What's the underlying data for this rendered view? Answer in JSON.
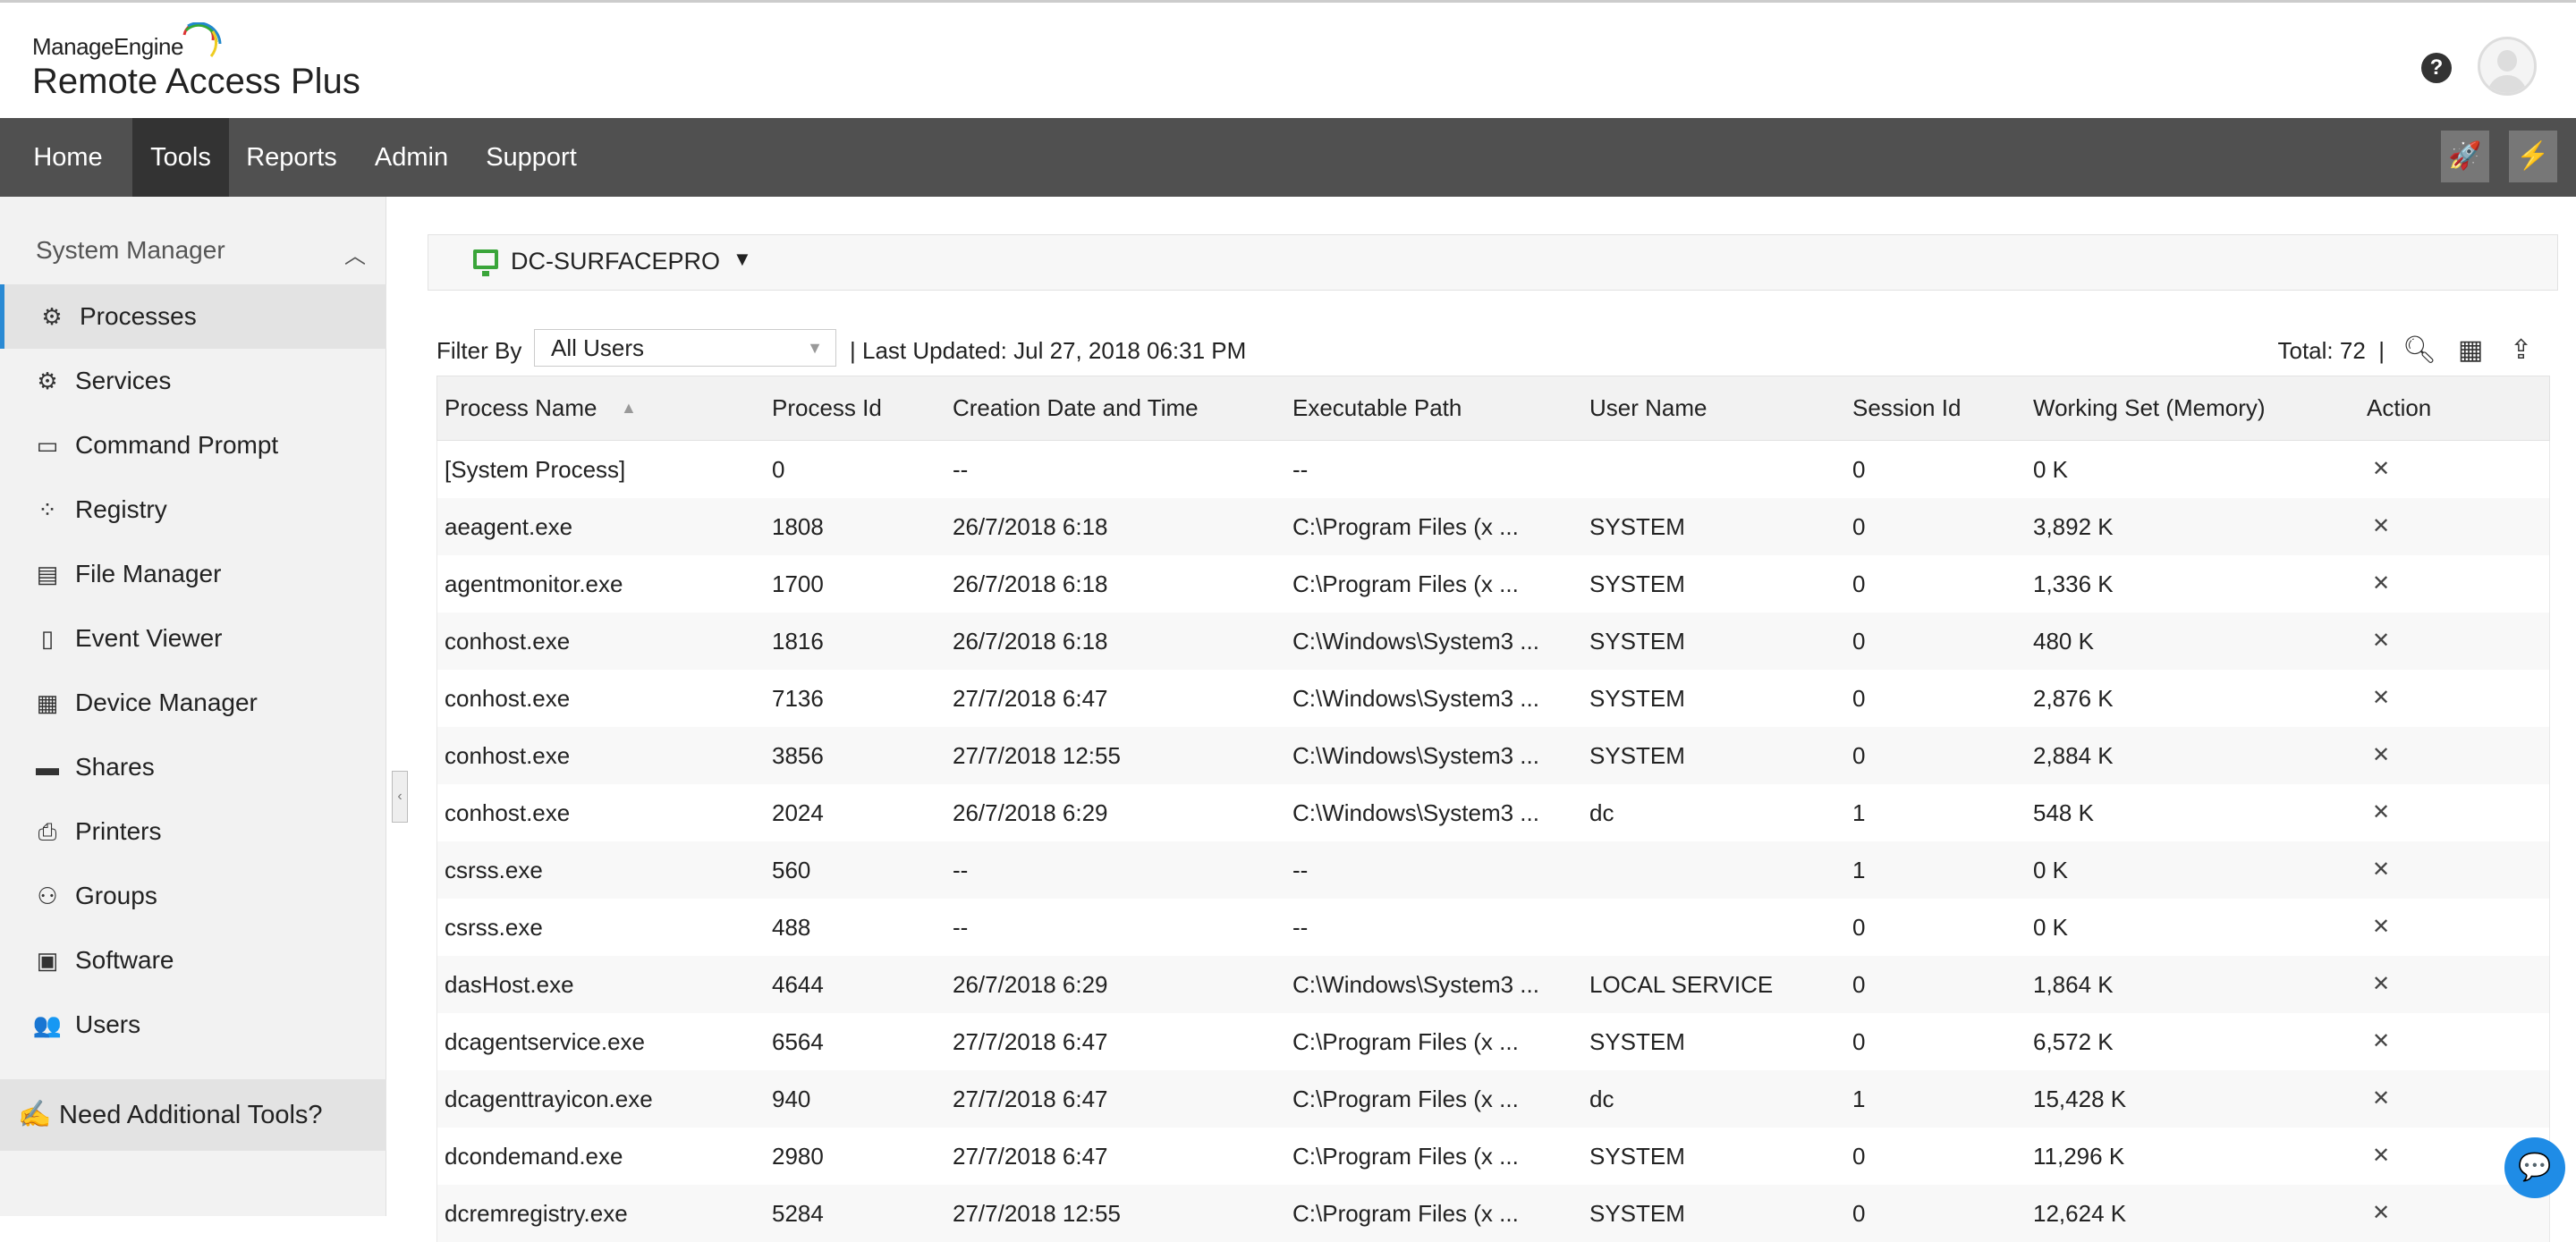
{
  "header": {
    "brand": "ManageEngine",
    "product": "Remote Access Plus",
    "help_icon": "help-icon",
    "avatar_icon": "user-avatar-icon"
  },
  "nav": {
    "items": [
      "Home",
      "Tools",
      "Reports",
      "Admin",
      "Support"
    ],
    "active": "Tools",
    "right_icons": [
      "rocket-icon",
      "lightning-icon"
    ]
  },
  "sidebar": {
    "section": "System Manager",
    "items": [
      {
        "label": "Processes",
        "icon": "gear-icon",
        "active": true
      },
      {
        "label": "Services",
        "icon": "services-icon"
      },
      {
        "label": "Command Prompt",
        "icon": "terminal-icon"
      },
      {
        "label": "Registry",
        "icon": "registry-icon"
      },
      {
        "label": "File Manager",
        "icon": "file-manager-icon"
      },
      {
        "label": "Event Viewer",
        "icon": "event-viewer-icon"
      },
      {
        "label": "Device Manager",
        "icon": "device-manager-icon"
      },
      {
        "label": "Shares",
        "icon": "shares-icon"
      },
      {
        "label": "Printers",
        "icon": "printer-icon"
      },
      {
        "label": "Groups",
        "icon": "groups-icon"
      },
      {
        "label": "Software",
        "icon": "software-icon"
      },
      {
        "label": "Users",
        "icon": "users-icon"
      }
    ],
    "need_tools": "Need Additional Tools?"
  },
  "device": {
    "name": "DC-SURFACEPRO",
    "color": "#3aa53a"
  },
  "toolbar": {
    "filter_label": "Filter By",
    "filter_value": "All Users",
    "last_updated_label": "Last Updated:",
    "last_updated": "Jul 27, 2018 06:31 PM",
    "total": "Total: 72"
  },
  "table": {
    "columns": [
      "Process Name",
      "Process Id",
      "Creation Date and Time",
      "Executable Path",
      "User Name",
      "Session Id",
      "Working Set (Memory)",
      "Action"
    ],
    "rows": [
      [
        "[System Process]",
        "0",
        "--",
        "--",
        "",
        "0",
        "0 K"
      ],
      [
        "aeagent.exe",
        "1808",
        "26/7/2018 6:18",
        "C:\\Program Files (x ...",
        "SYSTEM",
        "0",
        "3,892 K"
      ],
      [
        "agentmonitor.exe",
        "1700",
        "26/7/2018 6:18",
        "C:\\Program Files (x ...",
        "SYSTEM",
        "0",
        "1,336 K"
      ],
      [
        "conhost.exe",
        "1816",
        "26/7/2018 6:18",
        "C:\\Windows\\System3 ...",
        "SYSTEM",
        "0",
        "480 K"
      ],
      [
        "conhost.exe",
        "7136",
        "27/7/2018 6:47",
        "C:\\Windows\\System3 ...",
        "SYSTEM",
        "0",
        "2,876 K"
      ],
      [
        "conhost.exe",
        "3856",
        "27/7/2018 12:55",
        "C:\\Windows\\System3 ...",
        "SYSTEM",
        "0",
        "2,884 K"
      ],
      [
        "conhost.exe",
        "2024",
        "26/7/2018 6:29",
        "C:\\Windows\\System3 ...",
        "dc",
        "1",
        "548 K"
      ],
      [
        "csrss.exe",
        "560",
        "--",
        "--",
        "",
        "1",
        "0 K"
      ],
      [
        "csrss.exe",
        "488",
        "--",
        "--",
        "",
        "0",
        "0 K"
      ],
      [
        "dasHost.exe",
        "4644",
        "26/7/2018 6:29",
        "C:\\Windows\\System3 ...",
        "LOCAL SERVICE",
        "0",
        "1,864 K"
      ],
      [
        "dcagentservice.exe",
        "6564",
        "27/7/2018 6:47",
        "C:\\Program Files (x ...",
        "SYSTEM",
        "0",
        "6,572 K"
      ],
      [
        "dcagenttrayicon.exe",
        "940",
        "27/7/2018 6:47",
        "C:\\Program Files (x ...",
        "dc",
        "1",
        "15,428 K"
      ],
      [
        "dcondemand.exe",
        "2980",
        "27/7/2018 6:47",
        "C:\\Program Files (x ...",
        "SYSTEM",
        "0",
        "11,296 K"
      ],
      [
        "dcremregistry.exe",
        "5284",
        "27/7/2018 12:55",
        "C:\\Program Files (x ...",
        "SYSTEM",
        "0",
        "12,624 K"
      ]
    ],
    "action_icon": "close-icon"
  }
}
